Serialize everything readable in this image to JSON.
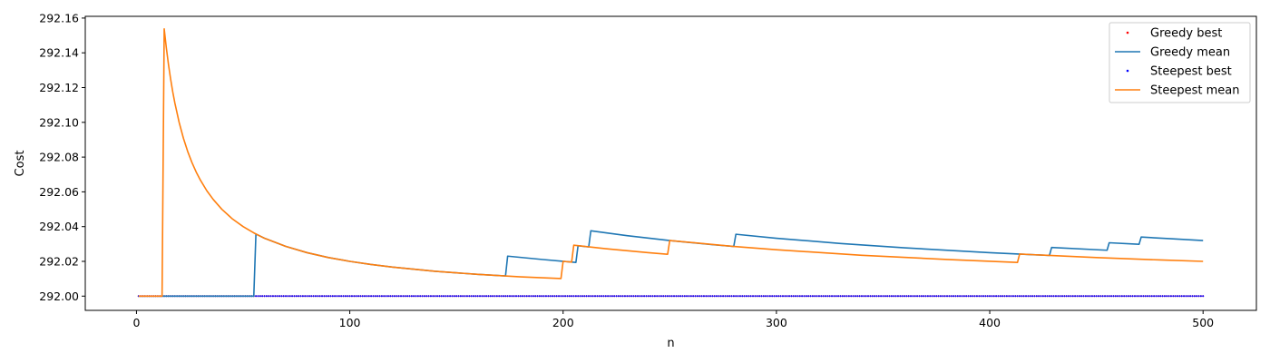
{
  "chart_data": {
    "type": "line",
    "title": "",
    "xlabel": "n",
    "ylabel": "Cost",
    "xlim": [
      -24,
      525
    ],
    "ylim": [
      291.9918,
      292.161
    ],
    "xticks": [
      0,
      100,
      200,
      300,
      400,
      500
    ],
    "xtick_labels": [
      "0",
      "100",
      "200",
      "300",
      "400",
      "500"
    ],
    "yticks": [
      292.0,
      292.02,
      292.04,
      292.06,
      292.08,
      292.1,
      292.12,
      292.14,
      292.16
    ],
    "ytick_labels": [
      "292.00",
      "292.02",
      "292.04",
      "292.06",
      "292.08",
      "292.10",
      "292.12",
      "292.14",
      "292.16"
    ],
    "grid": false,
    "legend_position": "top-right",
    "x_range": [
      1,
      500
    ],
    "series": [
      {
        "name": "Greedy best",
        "kind": "points",
        "color": "#ff0000",
        "constant": 292.0
      },
      {
        "name": "Greedy mean",
        "kind": "line",
        "color": "#1f77b4",
        "points": [
          [
            1,
            292.0
          ],
          [
            55,
            292.0
          ],
          [
            56,
            292.0357
          ],
          [
            57,
            292.0351
          ],
          [
            60,
            292.0333
          ],
          [
            70,
            292.0286
          ],
          [
            80,
            292.025
          ],
          [
            90,
            292.0222
          ],
          [
            100,
            292.02
          ],
          [
            110,
            292.0182
          ],
          [
            120,
            292.0167
          ],
          [
            140,
            292.0143
          ],
          [
            160,
            292.0125
          ],
          [
            173,
            292.0116
          ],
          [
            174,
            292.023
          ],
          [
            190,
            292.0211
          ],
          [
            206,
            292.0194
          ],
          [
            207,
            292.029
          ],
          [
            212,
            292.0283
          ],
          [
            213,
            292.0376
          ],
          [
            230,
            292.0348
          ],
          [
            250,
            292.032
          ],
          [
            270,
            292.0296
          ],
          [
            280,
            292.0286
          ],
          [
            281,
            292.0356
          ],
          [
            300,
            292.0333
          ],
          [
            330,
            292.0303
          ],
          [
            360,
            292.0278
          ],
          [
            400,
            292.025
          ],
          [
            428,
            292.0234
          ],
          [
            429,
            292.028
          ],
          [
            455,
            292.0264
          ],
          [
            456,
            292.0307
          ],
          [
            470,
            292.0298
          ],
          [
            471,
            292.034
          ],
          [
            485,
            292.033
          ],
          [
            500,
            292.032
          ]
        ]
      },
      {
        "name": "Steepest best",
        "kind": "points",
        "color": "#0000ff",
        "constant": 292.0
      },
      {
        "name": "Steepest mean",
        "kind": "line",
        "color": "#ff7f0e",
        "points": [
          [
            1,
            292.0
          ],
          [
            12,
            292.0
          ],
          [
            13,
            292.1538
          ],
          [
            14,
            292.1429
          ],
          [
            15,
            292.1333
          ],
          [
            16,
            292.125
          ],
          [
            17,
            292.1176
          ],
          [
            18,
            292.1111
          ],
          [
            20,
            292.1
          ],
          [
            22,
            292.0909
          ],
          [
            24,
            292.0833
          ],
          [
            26,
            292.0769
          ],
          [
            28,
            292.0714
          ],
          [
            30,
            292.0667
          ],
          [
            33,
            292.0606
          ],
          [
            36,
            292.0556
          ],
          [
            40,
            292.05
          ],
          [
            45,
            292.0444
          ],
          [
            50,
            292.04
          ],
          [
            55,
            292.0364
          ],
          [
            60,
            292.0333
          ],
          [
            70,
            292.0286
          ],
          [
            80,
            292.025
          ],
          [
            90,
            292.0222
          ],
          [
            100,
            292.02
          ],
          [
            110,
            292.0182
          ],
          [
            120,
            292.0167
          ],
          [
            140,
            292.0143
          ],
          [
            160,
            292.0125
          ],
          [
            180,
            292.0111
          ],
          [
            199,
            292.0101
          ],
          [
            200,
            292.02
          ],
          [
            204,
            292.0196
          ],
          [
            205,
            292.0293
          ],
          [
            220,
            292.0273
          ],
          [
            240,
            292.025
          ],
          [
            249,
            292.0241
          ],
          [
            250,
            292.032
          ],
          [
            280,
            292.0286
          ],
          [
            300,
            292.0267
          ],
          [
            340,
            292.0235
          ],
          [
            380,
            292.0211
          ],
          [
            413,
            292.0194
          ],
          [
            414,
            292.0242
          ],
          [
            450,
            292.0222
          ],
          [
            480,
            292.0208
          ],
          [
            500,
            292.02
          ]
        ]
      }
    ]
  }
}
